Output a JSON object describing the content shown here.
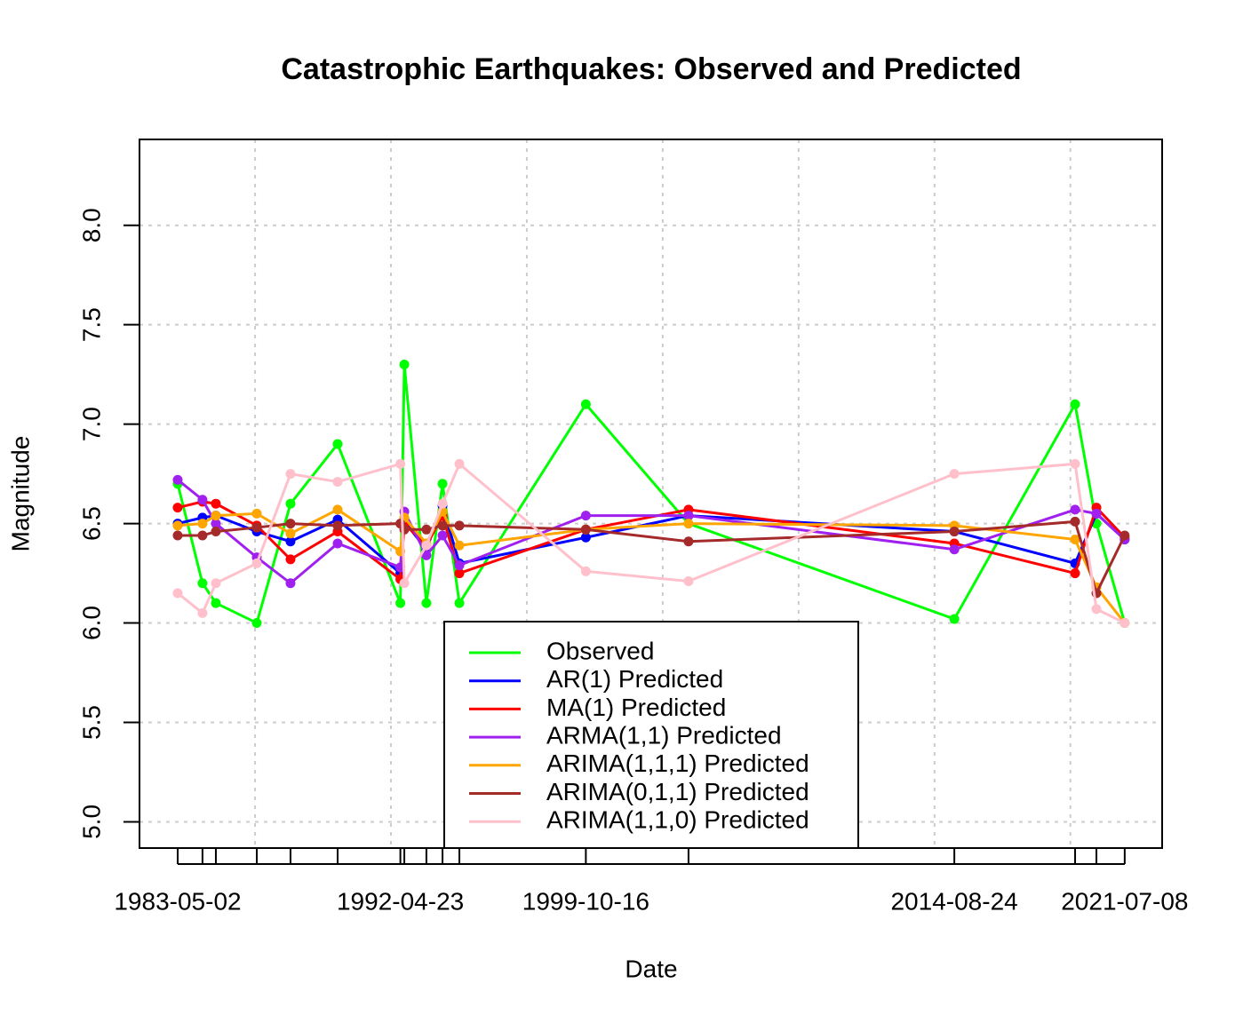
{
  "chart_data": {
    "type": "line",
    "title": "Catastrophic Earthquakes: Observed and Predicted",
    "xlabel": "Date",
    "ylabel": "Magnitude",
    "x": [
      1983.33,
      1984.33,
      1984.87,
      1986.52,
      1987.88,
      1989.78,
      1992.31,
      1992.47,
      1993.36,
      1994.01,
      1994.69,
      1999.79,
      2003.93,
      2014.65,
      2019.52,
      2020.38,
      2021.52
    ],
    "series": [
      {
        "name": "Observed",
        "color": "#00FF00",
        "values": [
          6.7,
          6.2,
          6.1,
          6.0,
          6.6,
          6.9,
          6.1,
          7.3,
          6.1,
          6.7,
          6.1,
          7.1,
          6.5,
          6.02,
          7.1,
          6.5,
          6.0
        ]
      },
      {
        "name": "AR(1) Predicted",
        "color": "#0000FF",
        "values": [
          6.5,
          6.53,
          6.54,
          6.46,
          6.41,
          6.52,
          6.25,
          6.51,
          6.37,
          6.59,
          6.3,
          6.43,
          6.54,
          6.46,
          6.3,
          6.55,
          6.42
        ]
      },
      {
        "name": "MA(1) Predicted",
        "color": "#FF0000",
        "values": [
          6.58,
          6.61,
          6.6,
          6.49,
          6.32,
          6.46,
          6.22,
          6.5,
          6.39,
          6.54,
          6.25,
          6.47,
          6.57,
          6.4,
          6.25,
          6.58,
          6.43
        ]
      },
      {
        "name": "ARMA(1,1) Predicted",
        "color": "#A020F0",
        "values": [
          6.72,
          6.62,
          6.5,
          6.33,
          6.2,
          6.4,
          6.28,
          6.56,
          6.34,
          6.44,
          6.29,
          6.54,
          6.54,
          6.37,
          6.57,
          6.55,
          6.42
        ]
      },
      {
        "name": "ARIMA(1,1,1) Predicted",
        "color": "#FFA500",
        "values": [
          6.49,
          6.5,
          6.54,
          6.55,
          6.45,
          6.57,
          6.36,
          6.53,
          6.4,
          6.56,
          6.39,
          6.47,
          6.5,
          6.49,
          6.42,
          6.18,
          6.0
        ]
      },
      {
        "name": "ARIMA(0,1,1) Predicted",
        "color": "#A52A2A",
        "values": [
          6.44,
          6.44,
          6.46,
          6.48,
          6.5,
          6.49,
          6.5,
          6.47,
          6.47,
          6.49,
          6.49,
          6.47,
          6.41,
          6.46,
          6.51,
          6.15,
          6.44
        ]
      },
      {
        "name": "ARIMA(1,1,0) Predicted",
        "color": "#FFC0CB",
        "values": [
          6.15,
          6.05,
          6.2,
          6.3,
          6.75,
          6.71,
          6.8,
          6.2,
          6.39,
          6.6,
          6.8,
          6.26,
          6.21,
          6.75,
          6.8,
          6.07,
          6.0
        ]
      }
    ],
    "xlim": [
      1981.79,
      2023.03
    ],
    "xticks": [
      {
        "value": 1983.33,
        "label": "1983-05-02"
      },
      {
        "value": 1984.33
      },
      {
        "value": 1984.87
      },
      {
        "value": 1986.52
      },
      {
        "value": 1987.88
      },
      {
        "value": 1989.78
      },
      {
        "value": 1992.31,
        "label": "1992-04-23"
      },
      {
        "value": 1992.47
      },
      {
        "value": 1993.36
      },
      {
        "value": 1994.01
      },
      {
        "value": 1994.69
      },
      {
        "value": 1999.79,
        "label": "1999-10-16"
      },
      {
        "value": 2003.93
      },
      {
        "value": 2014.65,
        "label": "2014-08-24"
      },
      {
        "value": 2019.52
      },
      {
        "value": 2020.38
      },
      {
        "value": 2021.52,
        "label": "2021-07-08"
      }
    ],
    "xgrid": [
      1986.45,
      1991.93,
      1997.41,
      2002.89,
      2008.37,
      2013.85,
      2019.33
    ],
    "ylim": [
      4.868,
      8.432
    ],
    "yticks": [
      {
        "value": 5,
        "label": "5.0"
      },
      5.5,
      {
        "value": 6,
        "label": "6.0"
      },
      6.5,
      {
        "value": 7,
        "label": "7.0"
      },
      7.5,
      {
        "value": 8,
        "label": "8.0"
      }
    ],
    "grid": true,
    "legend": "bottom"
  }
}
